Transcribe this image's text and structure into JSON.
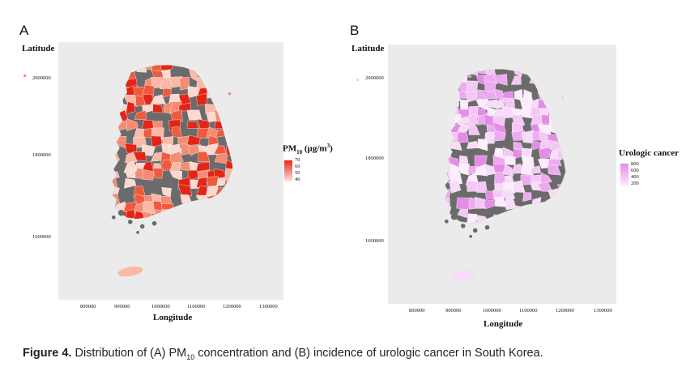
{
  "panels": [
    {
      "letter": "A",
      "y_axis_label": "Latitude",
      "x_axis_label": "Longitude",
      "y_ticks": [
        "2000000",
        "1800000",
        "1600000"
      ],
      "x_ticks": [
        "800000",
        "900000",
        "1000000",
        "1100000",
        "1200000",
        "1300000"
      ],
      "legend": {
        "title_main": "PM",
        "title_sub": "10",
        "title_unit_pre": " (µg/m",
        "title_unit_sup": "3",
        "title_unit_post": ")",
        "ticks": [
          "70",
          "60",
          "50",
          "40"
        ],
        "color_high": "#e8271b",
        "color_low": "#fbe4dd"
      },
      "palette": [
        "#e32417",
        "#ef5a3e",
        "#f58b72",
        "#f9b9a6",
        "#fbd9cf"
      ],
      "missing_color": "#6b6b6b"
    },
    {
      "letter": "B",
      "y_axis_label": "Latitude",
      "x_axis_label": "Longitude",
      "y_ticks": [
        "2000000",
        "1800000",
        "1600000"
      ],
      "x_ticks": [
        "800000",
        "900000",
        "1000000",
        "1100000",
        "1200000",
        "1300000"
      ],
      "legend": {
        "title": "Urologic cancer",
        "ticks": [
          "800",
          "600",
          "400",
          "200"
        ],
        "color_high": "#e58be8",
        "color_low": "#fbeffb"
      },
      "palette": [
        "#e58be8",
        "#eeaaf0",
        "#f4c8f5",
        "#f8dbf9",
        "#fcecfc"
      ],
      "missing_color": "#6b6b6b"
    }
  ],
  "caption": {
    "label": "Figure 4.",
    "text_1": " Distribution of (A) PM",
    "sub": "10",
    "text_2": " concentration and (B) incidence of urologic cancer in South Korea."
  }
}
